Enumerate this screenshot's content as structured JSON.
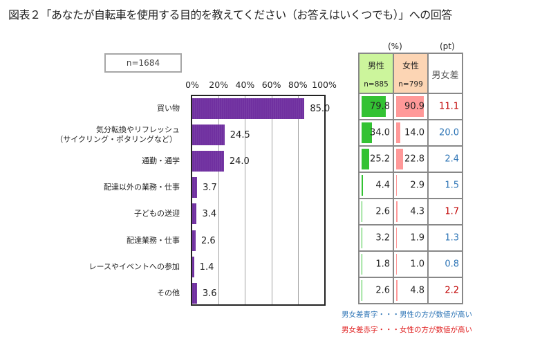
{
  "title": "図表２「あなたが自転車を使用する目的を教えてください（お答えはいくつでも）」への回答",
  "sample_label": "n=1684",
  "table": {
    "unit_pct": "(%)",
    "unit_pt": "(pt)",
    "headers": {
      "male": "男性",
      "male_n": "n=885",
      "female": "女性",
      "female_n": "n=799",
      "diff": "男女差"
    },
    "colors": {
      "male_fill": "#33c233",
      "female_fill": "#ff9999",
      "male_higher": "#2e75b6",
      "female_higher": "#c00000"
    },
    "rows": [
      {
        "male": "79.8",
        "female": "90.9",
        "diff": "11.1",
        "higher": "female"
      },
      {
        "male": "34.0",
        "female": "14.0",
        "diff": "20.0",
        "higher": "male"
      },
      {
        "male": "25.2",
        "female": "22.8",
        "diff": "2.4",
        "higher": "male"
      },
      {
        "male": "4.4",
        "female": "2.9",
        "diff": "1.5",
        "higher": "male"
      },
      {
        "male": "2.6",
        "female": "4.3",
        "diff": "1.7",
        "higher": "female"
      },
      {
        "male": "3.2",
        "female": "1.9",
        "diff": "1.3",
        "higher": "male"
      },
      {
        "male": "1.8",
        "female": "1.0",
        "diff": "0.8",
        "higher": "male"
      },
      {
        "male": "2.6",
        "female": "4.8",
        "diff": "2.2",
        "higher": "female"
      }
    ]
  },
  "notes": {
    "blue": "男女差青字・・・男性の方が数値が高い",
    "red": "男女差赤字・・・女性の方が数値が高い"
  },
  "chart_data": {
    "type": "bar",
    "orientation": "horizontal",
    "title": "図表２「あなたが自転車を使用する目的を教えてください（お答えはいくつでも）」への回答",
    "xlabel": "",
    "ylabel": "",
    "xlim": [
      0,
      100
    ],
    "x_ticks": [
      "0%",
      "20%",
      "40%",
      "60%",
      "80%",
      "100%"
    ],
    "grid": true,
    "bar_color": "#7030a0",
    "categories": [
      "買い物",
      "気分転換やリフレッシュ\n（サイクリング・ポタリングなど）",
      "通勤・通学",
      "配達以外の業務・仕事",
      "子どもの送迎",
      "配達業務・仕事",
      "レースやイベントへの参加",
      "その他"
    ],
    "values": [
      85.0,
      24.5,
      24.0,
      3.7,
      3.4,
      2.6,
      1.4,
      3.6
    ],
    "value_labels": [
      "85.0",
      "24.5",
      "24.0",
      "3.7",
      "3.4",
      "2.6",
      "1.4",
      "3.6"
    ]
  }
}
